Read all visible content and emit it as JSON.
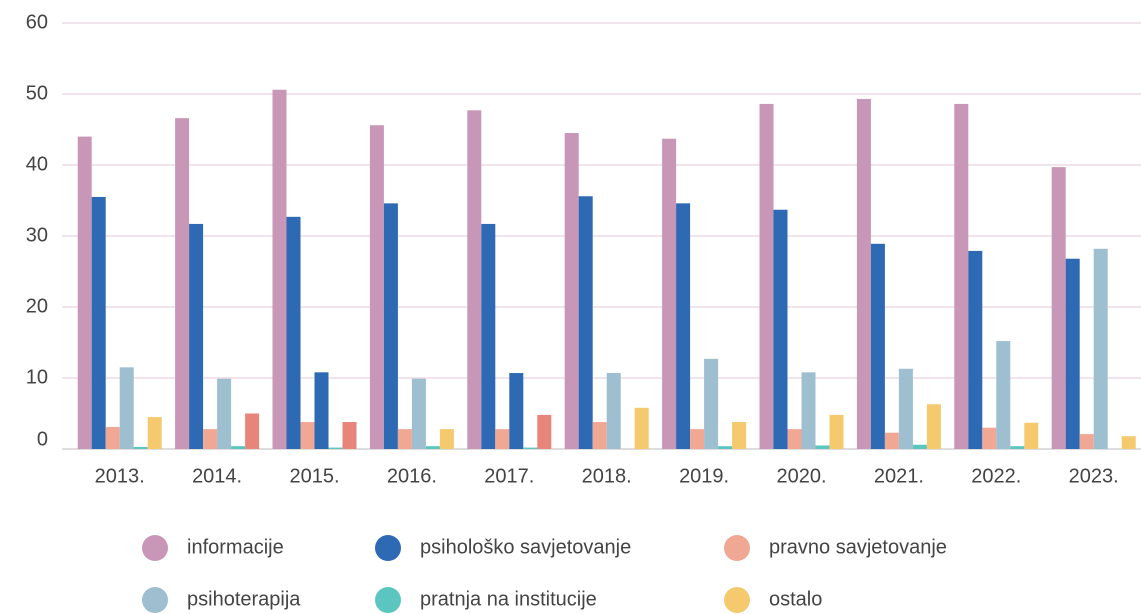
{
  "chart_data": {
    "type": "bar",
    "categories": [
      "2013.",
      "2014.",
      "2015.",
      "2016.",
      "2017.",
      "2018.",
      "2019.",
      "2020.",
      "2021.",
      "2022.",
      "2023."
    ],
    "series": [
      {
        "name": "informacije",
        "color": "#c896b6",
        "values": [
          44,
          46.6,
          50.6,
          45.6,
          47.7,
          44.5,
          43.7,
          48.6,
          49.3,
          48.6,
          39.7
        ]
      },
      {
        "name": "psihološko savjetovanje",
        "color": "#2e6ab3",
        "values": [
          35.5,
          31.7,
          32.7,
          34.6,
          31.7,
          35.6,
          34.6,
          33.7,
          28.9,
          27.9,
          26.8
        ]
      },
      {
        "name": "pravno savjetovanje",
        "color": "#f0a894",
        "values": [
          3.1,
          2.8,
          3.8,
          2.8,
          2.8,
          3.8,
          2.8,
          2.8,
          2.3,
          3,
          2.1
        ]
      },
      {
        "name": "psihoterapija",
        "color": "#9dbfd0",
        "colors": [
          "#9dbfd0",
          "#9dbfd0",
          "#2e6ab3",
          "#9dbfd0",
          "#2e6ab3",
          "#9dbfd0",
          "#9dbfd0",
          "#9dbfd0",
          "#9dbfd0",
          "#9dbfd0",
          "#9dbfd0"
        ],
        "values": [
          11.5,
          9.9,
          10.8,
          9.9,
          10.7,
          10.7,
          12.7,
          10.8,
          11.3,
          15.2,
          28.2
        ]
      },
      {
        "name": "pratnja na institucije",
        "color": "#5bc6c0",
        "values": [
          0.3,
          0.4,
          0.2,
          0.4,
          0.2,
          0,
          0.4,
          0.5,
          0.6,
          0.4,
          0
        ]
      },
      {
        "name": "ostalo",
        "color": "#f5c96e",
        "colors": [
          "#f5c96e",
          "#e8857a",
          "#e8857a",
          "#f5c96e",
          "#e8857a",
          "#f5c96e",
          "#f5c96e",
          "#f5c96e",
          "#f5c96e",
          "#f5c96e",
          "#f5c96e"
        ],
        "values": [
          4.5,
          5,
          3.8,
          2.8,
          4.8,
          5.8,
          3.8,
          4.8,
          6.3,
          3.7,
          1.8
        ]
      }
    ],
    "ylim": [
      0,
      60
    ],
    "yticks": [
      0,
      10,
      20,
      30,
      40,
      50,
      60
    ],
    "grid": true,
    "legend": "bottom"
  }
}
